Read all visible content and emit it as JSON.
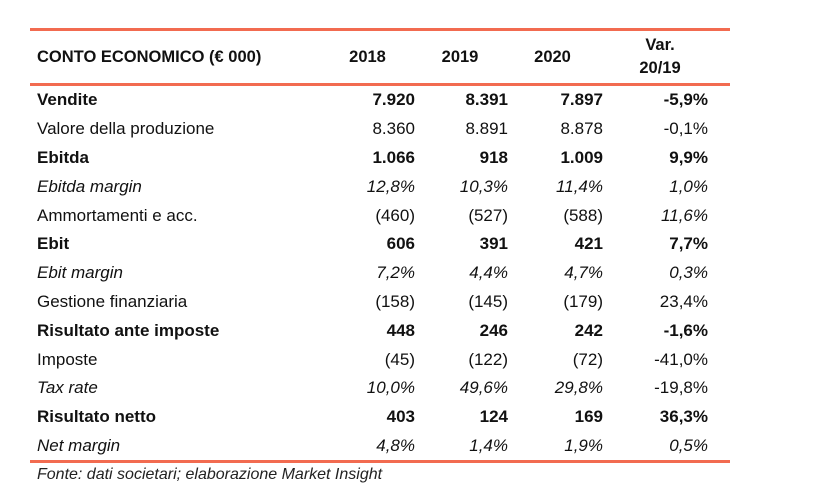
{
  "header": {
    "title": "CONTO ECONOMICO (€ 000)",
    "col1": "2018",
    "col2": "2019",
    "col3": "2020",
    "col4_line1": "Var.",
    "col4_line2": "20/19"
  },
  "rows": [
    {
      "label": "Vendite",
      "v": [
        "7.920",
        "8.391",
        "7.897",
        "-5,9%"
      ],
      "bold": true
    },
    {
      "label": "Valore della produzione",
      "v": [
        "8.360",
        "8.891",
        "8.878",
        "-0,1%"
      ]
    },
    {
      "label": "Ebitda",
      "v": [
        "1.066",
        "918",
        "1.009",
        "9,9%"
      ],
      "bold": true
    },
    {
      "label": "Ebitda margin",
      "v": [
        "12,8%",
        "10,3%",
        "11,4%",
        "1,0%"
      ],
      "italic": true
    },
    {
      "label": "Ammortamenti e acc.",
      "v": [
        "(460)",
        "(527)",
        "(588)",
        "11,6%"
      ]
    },
    {
      "label": "Ebit",
      "v": [
        "606",
        "391",
        "421",
        "7,7%"
      ],
      "bold": true
    },
    {
      "label": "Ebit margin",
      "v": [
        "7,2%",
        "4,4%",
        "4,7%",
        "0,3%"
      ],
      "italic": true
    },
    {
      "label": "Gestione finanziaria",
      "v": [
        "(158)",
        "(145)",
        "(179)",
        "23,4%"
      ]
    },
    {
      "label": "Risultato ante imposte",
      "v": [
        "448",
        "246",
        "242",
        "-1,6%"
      ],
      "bold": true
    },
    {
      "label": "Imposte",
      "v": [
        "(45)",
        "(122)",
        "(72)",
        "-41,0%"
      ]
    },
    {
      "label": "Tax rate",
      "v": [
        "10,0%",
        "49,6%",
        "29,8%",
        "-19,8%"
      ],
      "italic": true
    },
    {
      "label": "Risultato netto",
      "v": [
        "403",
        "124",
        "169",
        "36,3%"
      ],
      "bold": true
    },
    {
      "label": "Net margin",
      "v": [
        "4,8%",
        "1,4%",
        "1,9%",
        "0,5%"
      ],
      "italic": true
    }
  ],
  "source": "Fonte: dati societari; elaborazione Market Insight",
  "colors": {
    "rule": "#f26b50"
  }
}
